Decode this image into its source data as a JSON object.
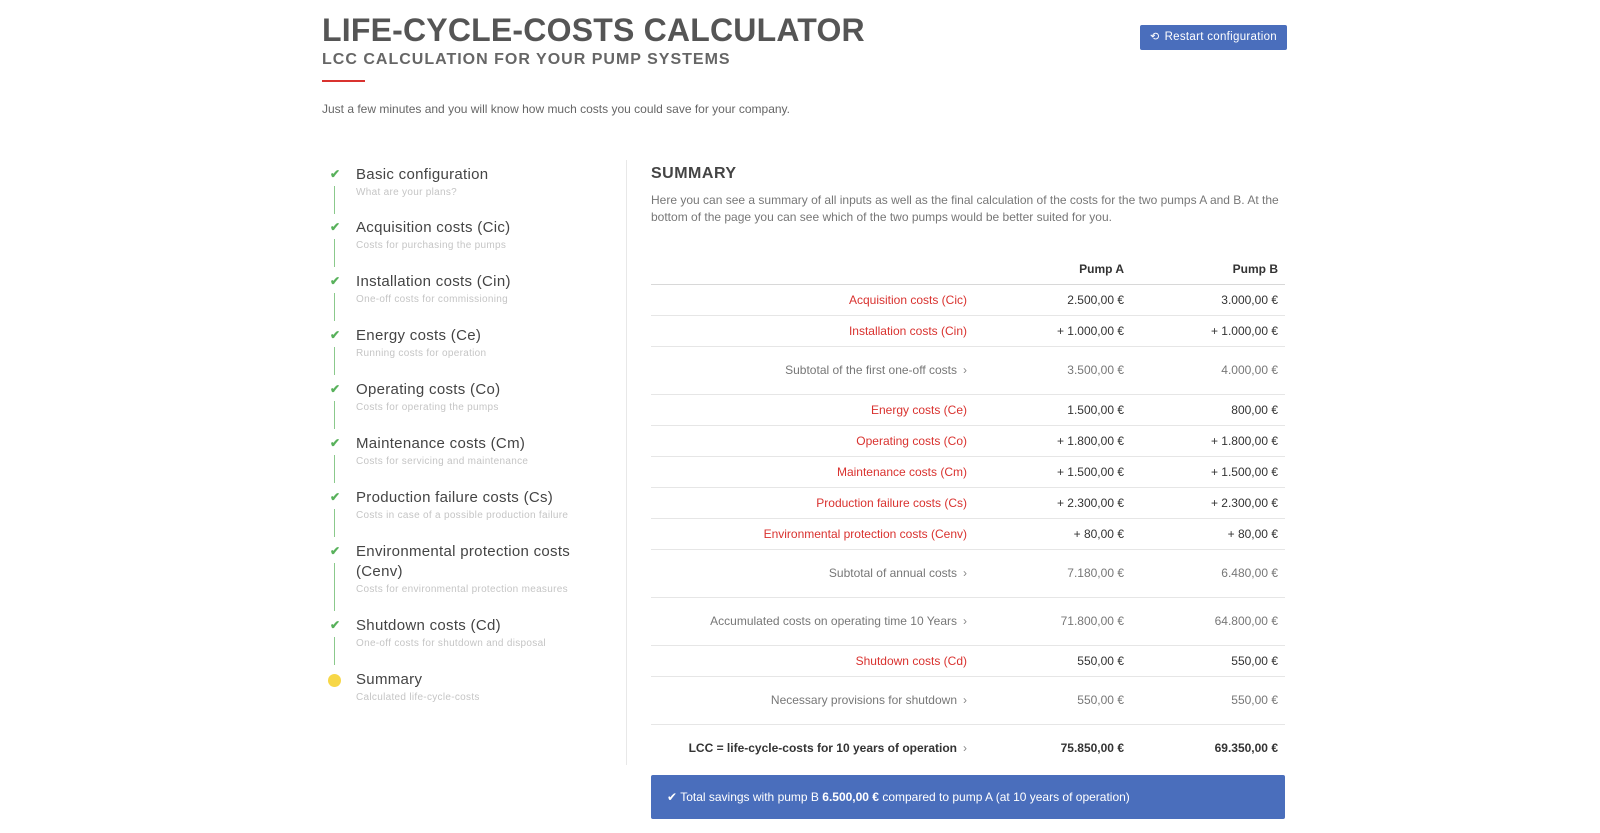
{
  "header": {
    "title": "LIFE-CYCLE-COSTS CALCULATOR",
    "subtitle": "LCC CALCULATION FOR YOUR PUMP SYSTEMS",
    "intro": "Just a few minutes and you will know how much costs you could save for your company.",
    "restart_label": "Restart configuration"
  },
  "steps": [
    {
      "label": "Basic configuration",
      "desc": "What are your plans?"
    },
    {
      "label": "Acquisition costs (Cic)",
      "desc": "Costs for purchasing the pumps"
    },
    {
      "label": "Installation costs (Cin)",
      "desc": "One-off costs for commissioning"
    },
    {
      "label": "Energy costs (Ce)",
      "desc": "Running costs for operation"
    },
    {
      "label": "Operating costs (Co)",
      "desc": "Costs for operating the pumps"
    },
    {
      "label": "Maintenance costs (Cm)",
      "desc": "Costs for servicing and maintenance"
    },
    {
      "label": "Production failure costs (Cs)",
      "desc": "Costs in case of a possible production failure"
    },
    {
      "label": "Environmental protection costs (Cenv)",
      "desc": "Costs for environmental protection measures"
    },
    {
      "label": "Shutdown costs (Cd)",
      "desc": "One-off costs for shutdown and disposal"
    },
    {
      "label": "Summary",
      "desc": "Calculated life-cycle-costs"
    }
  ],
  "summary": {
    "title": "SUMMARY",
    "text": "Here you can see a summary of all inputs as well as the final calculation of the costs for the two pumps A and B. At the bottom of the page you can see which of the two pumps would be better suited for you.",
    "col_a": "Pump A",
    "col_b": "Pump B",
    "rows": [
      {
        "label": "Acquisition costs (Cic)",
        "a": "2.500,00 €",
        "b": "3.000,00 €"
      },
      {
        "label": "Installation costs (Cin)",
        "a": "+ 1.000,00 €",
        "b": "+ 1.000,00 €"
      },
      {
        "label": "Subtotal of the first one-off costs",
        "a": "3.500,00 €",
        "b": "4.000,00 €"
      },
      {
        "label": "Energy costs (Ce)",
        "a": "1.500,00 €",
        "b": "800,00 €"
      },
      {
        "label": "Operating costs (Co)",
        "a": "+ 1.800,00 €",
        "b": "+ 1.800,00 €"
      },
      {
        "label": "Maintenance costs (Cm)",
        "a": "+ 1.500,00 €",
        "b": "+ 1.500,00 €"
      },
      {
        "label": "Production failure costs (Cs)",
        "a": "+ 2.300,00 €",
        "b": "+ 2.300,00 €"
      },
      {
        "label": "Environmental protection costs (Cenv)",
        "a": "+ 80,00 €",
        "b": "+ 80,00 €"
      },
      {
        "label": "Subtotal of annual costs",
        "a": "7.180,00 €",
        "b": "6.480,00 €"
      },
      {
        "label": "Accumulated costs on operating time 10 Years",
        "a": "71.800,00 €",
        "b": "64.800,00 €"
      },
      {
        "label": "Shutdown costs (Cd)",
        "a": "550,00 €",
        "b": "550,00 €"
      },
      {
        "label": "Necessary provisions for shutdown",
        "a": "550,00 €",
        "b": "550,00 €"
      },
      {
        "label": "LCC = life-cycle-costs for 10 years of operation",
        "a": "75.850,00 €",
        "b": "69.350,00 €"
      }
    ]
  },
  "savings": {
    "pre": "Total savings with pump B",
    "amount": "6.500,00 €",
    "post": "compared to pump A (at 10 years of operation)"
  },
  "colors": {
    "accent": "#4a6ebc",
    "red": "#d9322f",
    "green": "#58b15b",
    "yellow": "#f7d747"
  },
  "icons": {
    "restart": "refresh-icon",
    "step_done": "check-icon",
    "step_current": "dot-icon",
    "row_more": "chevron-right-icon",
    "savings": "check-icon"
  }
}
